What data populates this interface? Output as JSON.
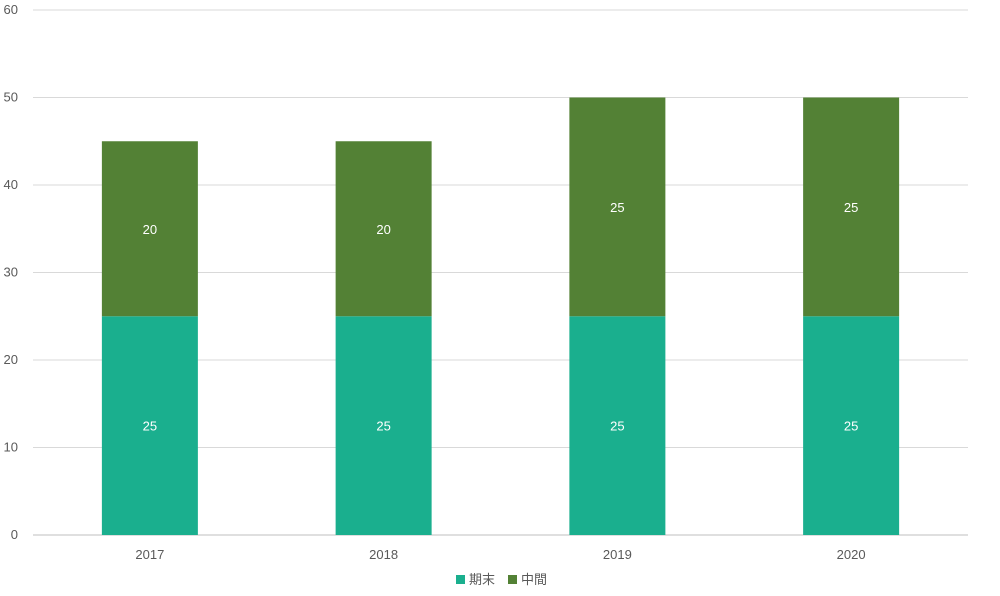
{
  "chart_data": {
    "type": "bar",
    "stacked": true,
    "categories": [
      "2017",
      "2018",
      "2019",
      "2020"
    ],
    "series": [
      {
        "name": "期末",
        "values": [
          25,
          25,
          25,
          25
        ],
        "color": "#1aaf8e"
      },
      {
        "name": "中間",
        "values": [
          20,
          20,
          25,
          25
        ],
        "color": "#538135"
      }
    ],
    "ylim": [
      0,
      60
    ],
    "yticks": [
      0,
      10,
      20,
      30,
      40,
      50,
      60
    ],
    "grid": true,
    "legend_position": "bottom",
    "data_labels": true
  }
}
